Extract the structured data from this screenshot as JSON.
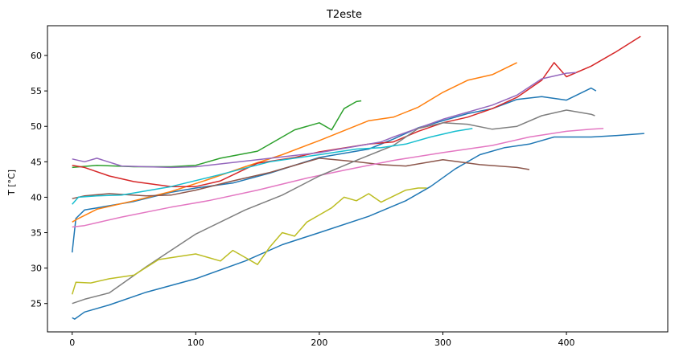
{
  "chart_data": {
    "type": "line",
    "title": "T2este",
    "xlabel": "",
    "ylabel": "T [°C]",
    "xlim": [
      -20,
      482
    ],
    "ylim": [
      21.0,
      64.2
    ],
    "xticks": [
      0,
      100,
      200,
      300,
      400
    ],
    "yticks": [
      25,
      30,
      35,
      40,
      45,
      50,
      55,
      60
    ],
    "grid": false,
    "legend": false,
    "series": [
      {
        "color": "#1f77b4",
        "x": [
          0,
          3,
          10,
          20,
          50,
          80,
          100,
          130,
          160,
          200,
          240,
          260,
          280,
          290,
          320,
          340,
          360,
          380,
          400,
          420,
          424
        ],
        "y": [
          32.2,
          37.0,
          38.2,
          38.5,
          39.4,
          40.7,
          41.3,
          42.0,
          43.4,
          45.6,
          46.8,
          48.2,
          49.8,
          50.3,
          51.8,
          52.5,
          53.8,
          54.2,
          53.7,
          55.4,
          55.0
        ]
      },
      {
        "color": "#1f77b4",
        "x": [
          0,
          2,
          10,
          30,
          60,
          100,
          140,
          170,
          200,
          240,
          270,
          290,
          310,
          330,
          350,
          370,
          390,
          420,
          440,
          463
        ],
        "y": [
          23.0,
          22.8,
          23.8,
          24.8,
          26.6,
          28.5,
          31.0,
          33.3,
          35.0,
          37.3,
          39.5,
          41.5,
          44.0,
          46.0,
          47.0,
          47.5,
          48.5,
          48.5,
          48.7,
          49.0
        ]
      },
      {
        "color": "#ff7f0e",
        "x": [
          0,
          5,
          20,
          50,
          80,
          110,
          140,
          170,
          200,
          240,
          260,
          280,
          300,
          320,
          340,
          360
        ],
        "y": [
          36.5,
          37.0,
          38.3,
          39.5,
          40.8,
          42.5,
          44.3,
          46.0,
          48.0,
          50.8,
          51.3,
          52.7,
          54.8,
          56.5,
          57.3,
          59.0
        ]
      },
      {
        "color": "#2ca02c",
        "x": [
          0,
          20,
          50,
          80,
          100,
          120,
          150,
          170,
          180,
          200,
          210,
          220,
          230,
          234
        ],
        "y": [
          44.2,
          44.5,
          44.3,
          44.3,
          44.5,
          45.5,
          46.5,
          48.5,
          49.5,
          50.5,
          49.5,
          52.5,
          53.5,
          53.6
        ]
      },
      {
        "color": "#d62728",
        "x": [
          0,
          10,
          30,
          50,
          80,
          100,
          120,
          150,
          180,
          200,
          240,
          260,
          280,
          300,
          320,
          340,
          360,
          380,
          390,
          400,
          420,
          440,
          460
        ],
        "y": [
          44.5,
          44.2,
          43.0,
          42.2,
          41.5,
          41.5,
          42.3,
          44.8,
          45.6,
          46.4,
          47.5,
          47.8,
          49.3,
          50.5,
          51.3,
          52.5,
          54.1,
          56.5,
          59.0,
          57.0,
          58.5,
          60.5,
          62.7
        ]
      },
      {
        "color": "#9467bd",
        "x": [
          0,
          10,
          20,
          40,
          80,
          100,
          150,
          200,
          250,
          260,
          300,
          340,
          360,
          380,
          400,
          408
        ],
        "y": [
          45.4,
          45.0,
          45.5,
          44.4,
          44.2,
          44.3,
          45.3,
          46.3,
          47.8,
          48.5,
          51.0,
          53.0,
          54.4,
          56.7,
          57.5,
          57.6
        ]
      },
      {
        "color": "#8c564b",
        "x": [
          0,
          10,
          30,
          60,
          80,
          100,
          130,
          160,
          200,
          230,
          250,
          270,
          300,
          330,
          360,
          370
        ],
        "y": [
          39.8,
          40.2,
          40.5,
          40.2,
          40.3,
          41.0,
          42.3,
          43.5,
          45.5,
          45.0,
          44.6,
          44.4,
          45.3,
          44.6,
          44.2,
          43.9
        ]
      },
      {
        "color": "#e377c2",
        "x": [
          0,
          10,
          40,
          80,
          110,
          150,
          190,
          220,
          260,
          300,
          340,
          370,
          400,
          420,
          430
        ],
        "y": [
          35.8,
          36.0,
          37.2,
          38.6,
          39.5,
          41.0,
          42.7,
          43.8,
          45.2,
          46.3,
          47.3,
          48.5,
          49.3,
          49.6,
          49.7
        ]
      },
      {
        "color": "#7f7f7f",
        "x": [
          0,
          10,
          30,
          60,
          100,
          140,
          170,
          200,
          230,
          260,
          280,
          300,
          320,
          340,
          360,
          380,
          400,
          420,
          423
        ],
        "y": [
          25.0,
          25.6,
          26.5,
          30.2,
          34.8,
          38.2,
          40.3,
          43.0,
          45.2,
          47.3,
          49.7,
          50.5,
          50.3,
          49.6,
          50.0,
          51.5,
          52.3,
          51.7,
          51.5
        ]
      },
      {
        "color": "#bcbd22",
        "x": [
          0,
          3,
          15,
          30,
          50,
          70,
          100,
          120,
          130,
          140,
          150,
          160,
          170,
          180,
          190,
          200,
          210,
          220,
          230,
          240,
          250,
          270,
          280,
          287
        ],
        "y": [
          26.3,
          28.0,
          27.9,
          28.5,
          29.0,
          31.2,
          32.0,
          31.0,
          32.5,
          31.5,
          30.5,
          33.0,
          35.0,
          34.5,
          36.5,
          37.5,
          38.5,
          40.0,
          39.5,
          40.5,
          39.3,
          41.0,
          41.3,
          41.3
        ]
      },
      {
        "color": "#17becf",
        "x": [
          0,
          5,
          20,
          40,
          80,
          120,
          160,
          200,
          230,
          250,
          270,
          290,
          310,
          324
        ],
        "y": [
          39.0,
          40.0,
          40.2,
          40.3,
          41.5,
          43.2,
          45.0,
          46.0,
          46.8,
          47.0,
          47.5,
          48.5,
          49.3,
          49.7
        ]
      }
    ]
  }
}
